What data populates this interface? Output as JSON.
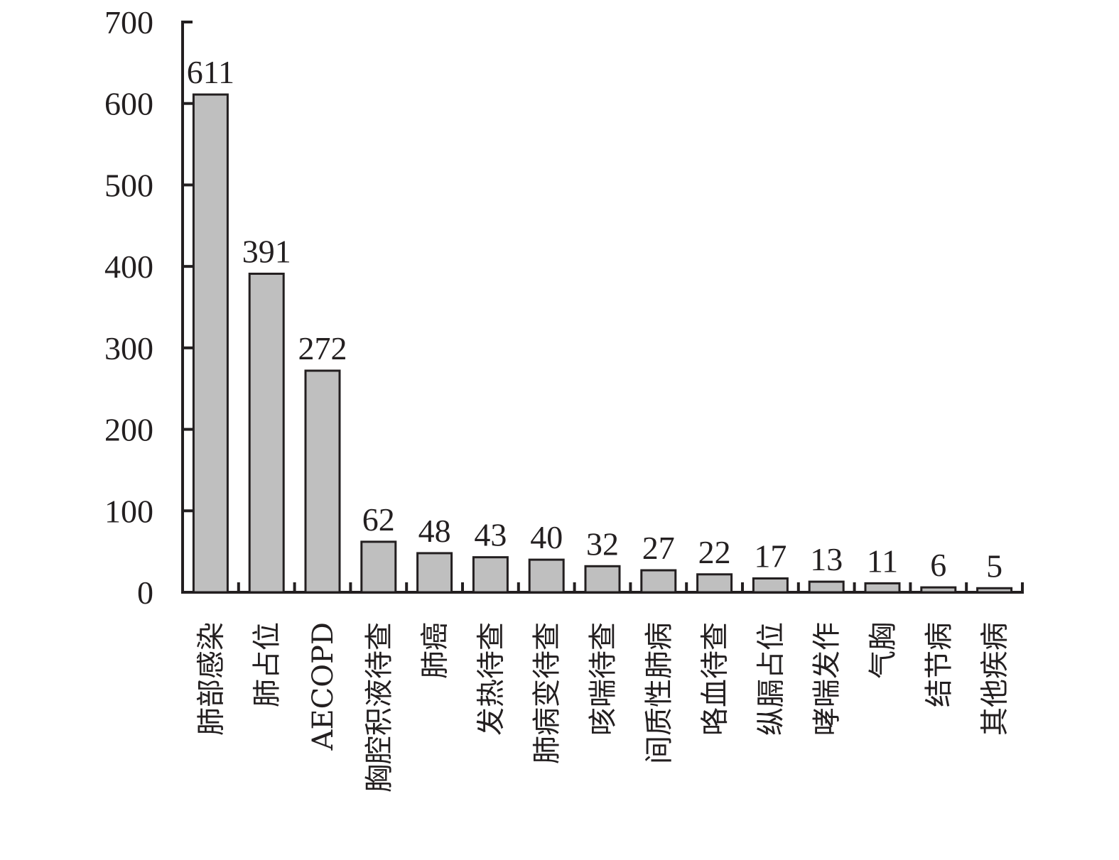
{
  "chart_data": {
    "type": "bar",
    "title": "",
    "xlabel": "",
    "ylabel": "",
    "ylim": [
      0,
      700
    ],
    "yticks": [
      "0",
      "100",
      "200",
      "300",
      "400",
      "500",
      "600",
      "700"
    ],
    "categories": [
      "肺部感染",
      "肺占位",
      "AECOPD",
      "胸腔积液待查",
      "肺癌",
      "发热待查",
      "肺病变待查",
      "咳喘待查",
      "间质性肺病",
      "咯血待查",
      "纵膈占位",
      "哮喘发作",
      "气胸",
      "结节病",
      "其他疾病"
    ],
    "values": [
      611,
      391,
      272,
      62,
      48,
      43,
      40,
      32,
      27,
      22,
      17,
      13,
      11,
      6,
      5
    ],
    "value_labels": [
      "611",
      "391",
      "272",
      "62",
      "48",
      "43",
      "40",
      "32",
      "27",
      "22",
      "17",
      "13",
      "11",
      "6",
      "5"
    ],
    "bar_color": "#bfbfbf",
    "grid": false,
    "legend": "none"
  }
}
